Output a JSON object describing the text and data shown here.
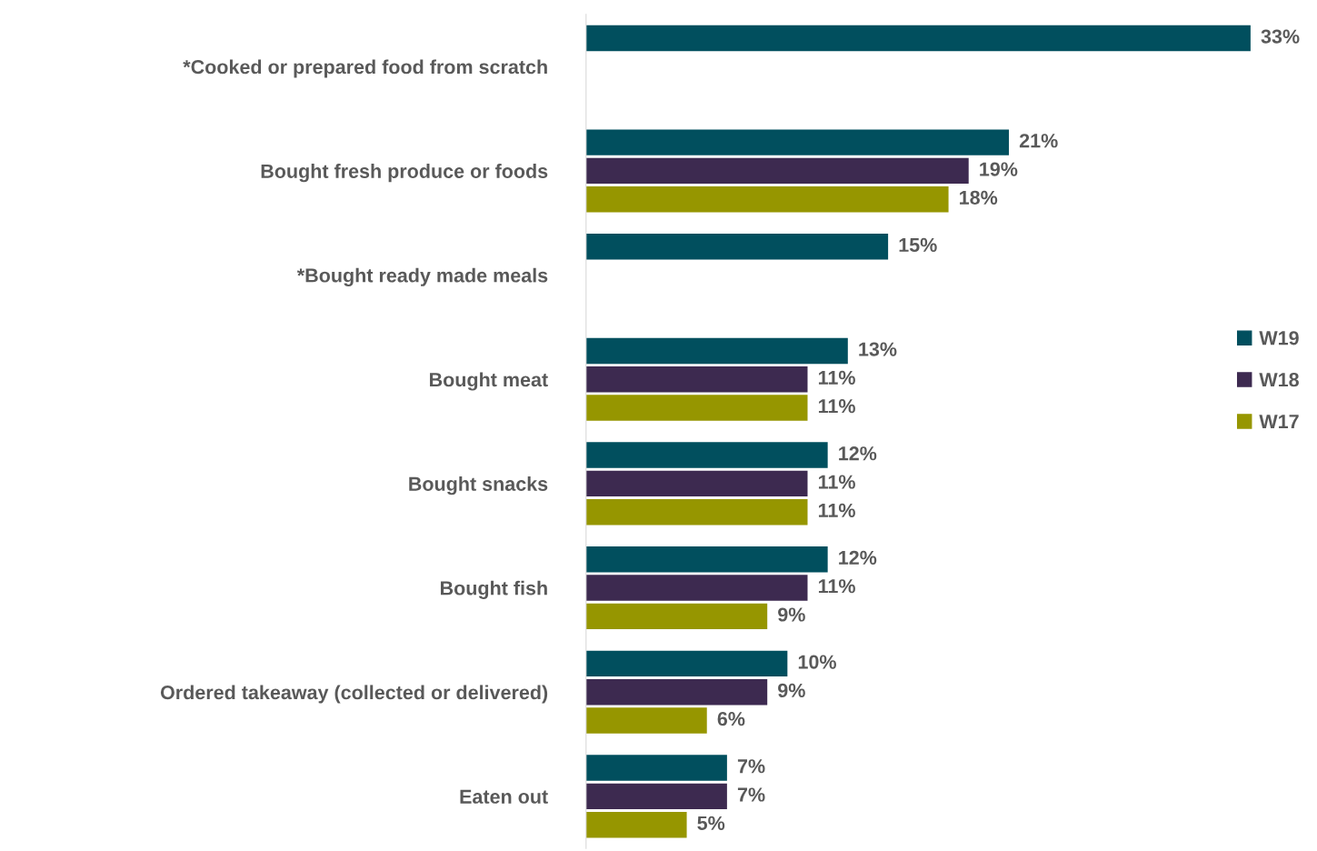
{
  "chart_data": {
    "type": "bar",
    "orientation": "horizontal",
    "categories": [
      "*Cooked or prepared food from scratch",
      "Bought fresh produce or foods",
      "*Bought ready made meals",
      "Bought meat",
      "Bought snacks",
      "Bought fish",
      "Ordered takeaway (collected or delivered)",
      "Eaten out"
    ],
    "series": [
      {
        "name": "W19",
        "color": "#014f5e",
        "values": [
          33,
          21,
          15,
          13,
          12,
          12,
          10,
          7
        ],
        "value_labels": [
          "33%",
          "21%",
          "15%",
          "13%",
          "12%",
          "12%",
          "10%",
          "7%"
        ]
      },
      {
        "name": "W18",
        "color": "#3d2a50",
        "values": [
          null,
          19,
          null,
          11,
          11,
          11,
          9,
          7
        ],
        "value_labels": [
          null,
          "19%",
          null,
          "11%",
          "11%",
          "11%",
          "9%",
          "7%"
        ]
      },
      {
        "name": "W17",
        "color": "#969600",
        "values": [
          null,
          18,
          null,
          11,
          11,
          9,
          6,
          5
        ],
        "value_labels": [
          null,
          "18%",
          null,
          "11%",
          "11%",
          "9%",
          "6%",
          "5%"
        ]
      }
    ],
    "legend": "right",
    "grid": false
  }
}
